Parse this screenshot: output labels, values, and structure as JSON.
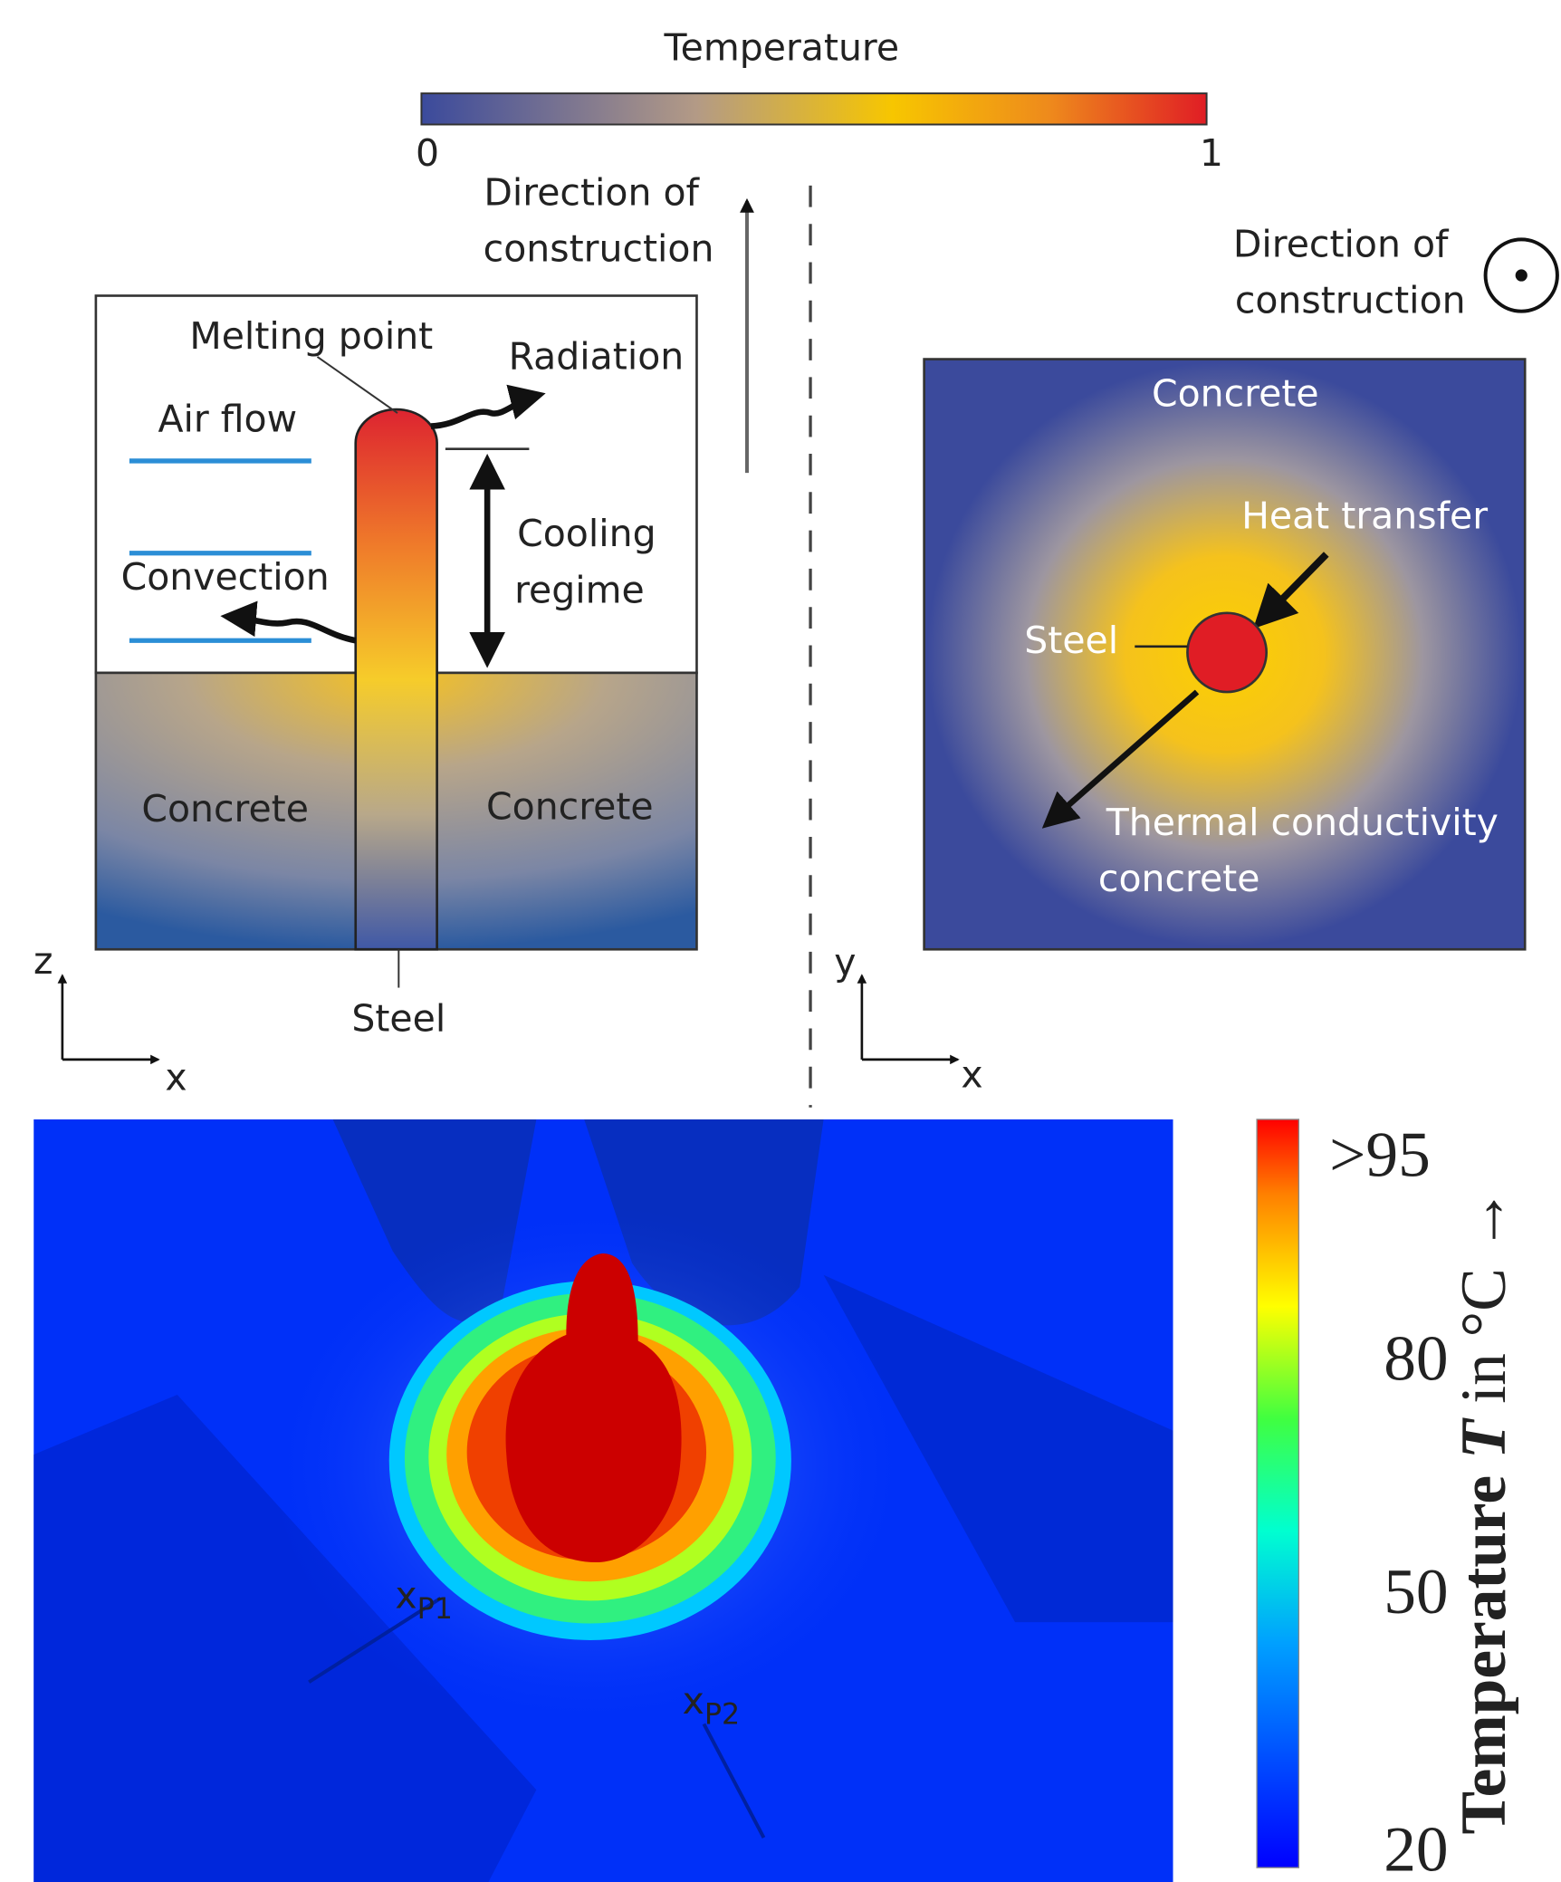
{
  "top_colorbar": {
    "title": "Temperature",
    "min_label": "0",
    "max_label": "1"
  },
  "side_view": {
    "direction": [
      "Direction of",
      "construction"
    ],
    "melting_point": "Melting point",
    "radiation": "Radiation",
    "air_flow": "Air flow",
    "convection": "Convection",
    "cooling_regime": [
      "Cooling",
      "regime"
    ],
    "concrete_left": "Concrete",
    "concrete_right": "Concrete",
    "steel": "Steel",
    "axis_vertical": "z",
    "axis_horizontal": "x"
  },
  "top_view": {
    "direction": [
      "Direction of",
      "construction"
    ],
    "concrete": "Concrete",
    "heat_transfer": "Heat transfer",
    "steel": "Steel",
    "thermal_conductivity": [
      "Thermal conductivity",
      "concrete"
    ],
    "axis_vertical": "y",
    "axis_horizontal": "x"
  },
  "thermal_image": {
    "points": [
      {
        "base": "x",
        "sub": "P1"
      },
      {
        "base": "x",
        "sub": "P2"
      }
    ],
    "colorbar": {
      "tick_labels": [
        ">95",
        "80",
        "50",
        "20"
      ],
      "title": [
        "Temperature ",
        "T",
        " in °C →"
      ]
    }
  }
}
